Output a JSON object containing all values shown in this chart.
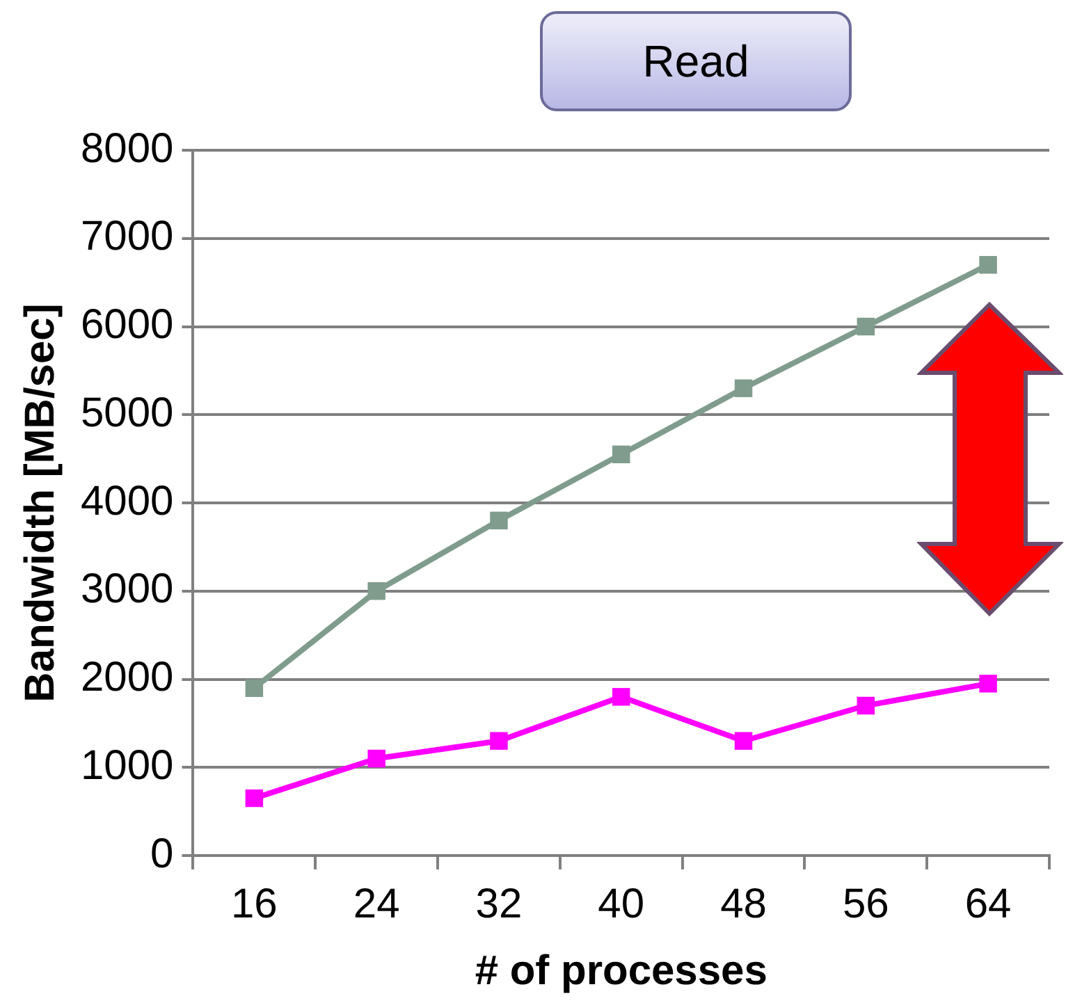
{
  "chart_data": {
    "type": "line",
    "title": "Read",
    "xlabel": "# of processes",
    "ylabel": "Bandwidth [MB/sec]",
    "categories": [
      "16",
      "24",
      "32",
      "40",
      "48",
      "56",
      "64"
    ],
    "series": [
      {
        "color": "#7f9c8c",
        "values": [
          1900,
          3000,
          3800,
          4550,
          5300,
          6000,
          6700
        ]
      },
      {
        "color": "#ff00ff",
        "values": [
          650,
          1100,
          1300,
          1800,
          1300,
          1700,
          1950
        ]
      }
    ],
    "ylim": [
      0,
      8000
    ],
    "yticks": [
      0,
      1000,
      2000,
      3000,
      4000,
      5000,
      6000,
      7000,
      8000
    ],
    "grid": "y",
    "legend": false,
    "marker": "square",
    "line_style": "solid"
  }
}
